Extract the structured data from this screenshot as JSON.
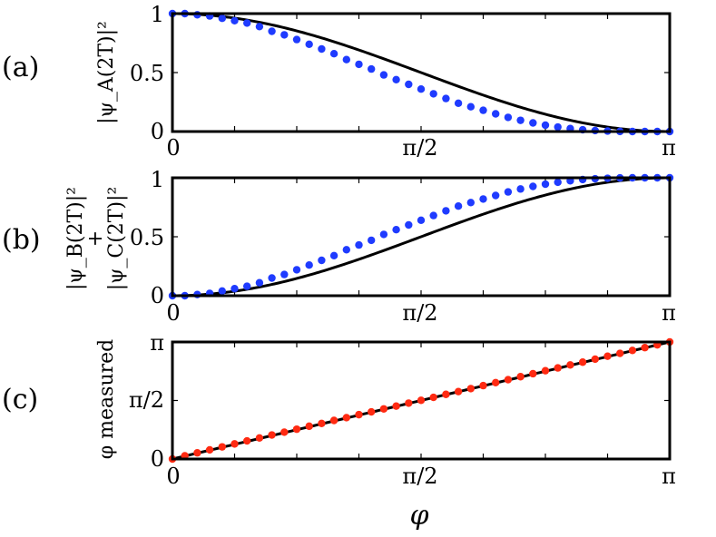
{
  "chart_data": [
    {
      "type": "line",
      "panel_label": "(a)",
      "ylabel": "|ψ_A(2T)|²",
      "xlim": [
        0,
        3.14159
      ],
      "ylim": [
        0,
        1
      ],
      "x_tick_labels": [
        "0",
        "π/2",
        "π"
      ],
      "y_tick_labels": [
        "0",
        "0.5",
        "1"
      ],
      "marker_color": "#1f3bff",
      "line_color": "#000000",
      "series": [
        {
          "x": [
            0,
            0.0785,
            0.1571,
            0.2356,
            0.3142,
            0.3927,
            0.4712,
            0.5498,
            0.6283,
            0.7069,
            0.7854,
            0.8639,
            0.9425,
            1.021,
            1.0996,
            1.1781,
            1.2566,
            1.3352,
            1.4137,
            1.4923,
            1.5708,
            1.6493,
            1.7279,
            1.8064,
            1.885,
            1.9635,
            2.042,
            2.1206,
            2.1991,
            2.2777,
            2.3562,
            2.4347,
            2.5133,
            2.5918,
            2.6704,
            2.7489,
            2.8274,
            2.906,
            2.9845,
            3.0631,
            3.1416
          ],
          "y": [
            1.0,
            1.0,
            0.99,
            0.98,
            0.96,
            0.94,
            0.92,
            0.89,
            0.85,
            0.82,
            0.78,
            0.74,
            0.7,
            0.66,
            0.61,
            0.57,
            0.53,
            0.48,
            0.44,
            0.4,
            0.36,
            0.32,
            0.28,
            0.24,
            0.21,
            0.18,
            0.15,
            0.12,
            0.095,
            0.073,
            0.054,
            0.038,
            0.025,
            0.015,
            0.008,
            0.004,
            0.001,
            0.0,
            0.0,
            0.0,
            0.0
          ]
        }
      ]
    },
    {
      "type": "line",
      "panel_label": "(b)",
      "ylabel_top": "|ψ_B(2T)|²",
      "ylabel_mid": "+",
      "ylabel_bottom": "|ψ_C(2T)|²",
      "xlim": [
        0,
        3.14159
      ],
      "ylim": [
        0,
        1
      ],
      "x_tick_labels": [
        "0",
        "π/2",
        "π"
      ],
      "y_tick_labels": [
        "0",
        "0.5",
        "1"
      ],
      "marker_color": "#1f3bff",
      "line_color": "#000000",
      "series": [
        {
          "x": [
            0,
            0.0785,
            0.1571,
            0.2356,
            0.3142,
            0.3927,
            0.4712,
            0.5498,
            0.6283,
            0.7069,
            0.7854,
            0.8639,
            0.9425,
            1.021,
            1.0996,
            1.1781,
            1.2566,
            1.3352,
            1.4137,
            1.4923,
            1.5708,
            1.6493,
            1.7279,
            1.8064,
            1.885,
            1.9635,
            2.042,
            2.1206,
            2.1991,
            2.2777,
            2.3562,
            2.4347,
            2.5133,
            2.5918,
            2.6704,
            2.7489,
            2.8274,
            2.906,
            2.9845,
            3.0631,
            3.1416
          ],
          "y": [
            0.0,
            0.0,
            0.01,
            0.02,
            0.04,
            0.06,
            0.08,
            0.11,
            0.15,
            0.18,
            0.22,
            0.26,
            0.3,
            0.34,
            0.39,
            0.43,
            0.47,
            0.52,
            0.56,
            0.6,
            0.64,
            0.68,
            0.72,
            0.76,
            0.79,
            0.82,
            0.85,
            0.88,
            0.905,
            0.927,
            0.946,
            0.962,
            0.975,
            0.985,
            0.992,
            0.996,
            0.999,
            1.0,
            1.0,
            1.0,
            1.0
          ]
        }
      ]
    },
    {
      "type": "line",
      "panel_label": "(c)",
      "ylabel": "φ measured",
      "xlabel": "φ",
      "xlim": [
        0,
        3.14159
      ],
      "ylim": [
        0,
        3.14159
      ],
      "x_tick_labels": [
        "0",
        "π/2",
        "π"
      ],
      "y_tick_labels": [
        "0",
        "π/2",
        "π"
      ],
      "marker_color": "#ff2a12",
      "line_color": "#000000",
      "series": [
        {
          "x": [
            0,
            0.0785,
            0.1571,
            0.2356,
            0.3142,
            0.3927,
            0.4712,
            0.5498,
            0.6283,
            0.7069,
            0.7854,
            0.8639,
            0.9425,
            1.021,
            1.0996,
            1.1781,
            1.2566,
            1.3352,
            1.4137,
            1.4923,
            1.5708,
            1.6493,
            1.7279,
            1.8064,
            1.885,
            1.9635,
            2.042,
            2.1206,
            2.1991,
            2.2777,
            2.3562,
            2.4347,
            2.5133,
            2.5918,
            2.6704,
            2.7489,
            2.8274,
            2.906,
            2.9845,
            3.0631,
            3.1416
          ],
          "y": [
            0.0,
            0.085,
            0.165,
            0.245,
            0.325,
            0.405,
            0.485,
            0.565,
            0.645,
            0.72,
            0.8,
            0.88,
            0.955,
            1.035,
            1.11,
            1.19,
            1.265,
            1.345,
            1.42,
            1.5,
            1.575,
            1.655,
            1.735,
            1.81,
            1.89,
            1.97,
            2.05,
            2.13,
            2.21,
            2.29,
            2.37,
            2.445,
            2.525,
            2.6,
            2.68,
            2.76,
            2.835,
            2.915,
            2.99,
            3.065,
            3.1416
          ]
        }
      ]
    }
  ]
}
